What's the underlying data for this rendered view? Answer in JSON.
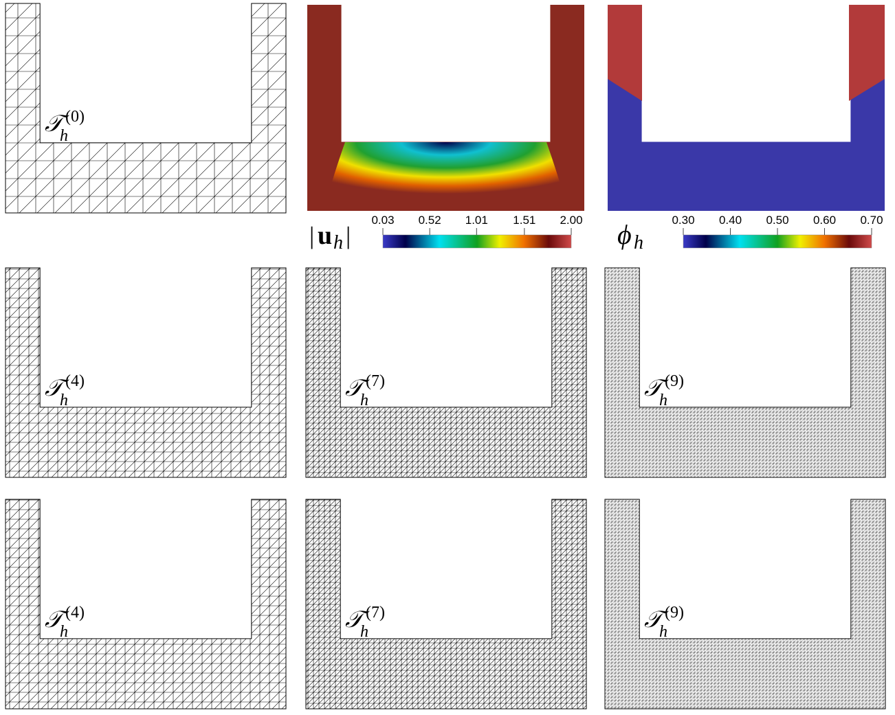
{
  "figure": {
    "mesh_symbol": "𝒯",
    "mesh_subscript": "h",
    "mesh_levels": [
      "(0)",
      "(4)",
      "(7)",
      "(9)",
      "(4)",
      "(7)",
      "(9)"
    ],
    "velocity": {
      "bar": "|",
      "symbol": "u",
      "sub": "h",
      "ticks": [
        {
          "value": 0.03,
          "label": "0.03"
        },
        {
          "value": 0.52,
          "label": "0.52"
        },
        {
          "value": 1.01,
          "label": "1.01"
        },
        {
          "value": 1.51,
          "label": "1.51"
        },
        {
          "value": 2.0,
          "label": "2.00"
        }
      ]
    },
    "phase": {
      "symbol": "ϕ",
      "sub": "h",
      "ticks": [
        {
          "value": 0.3,
          "label": "0.30"
        },
        {
          "value": 0.4,
          "label": "0.40"
        },
        {
          "value": 0.5,
          "label": "0.50"
        },
        {
          "value": 0.6,
          "label": "0.60"
        },
        {
          "value": 0.7,
          "label": "0.70"
        }
      ]
    }
  }
}
